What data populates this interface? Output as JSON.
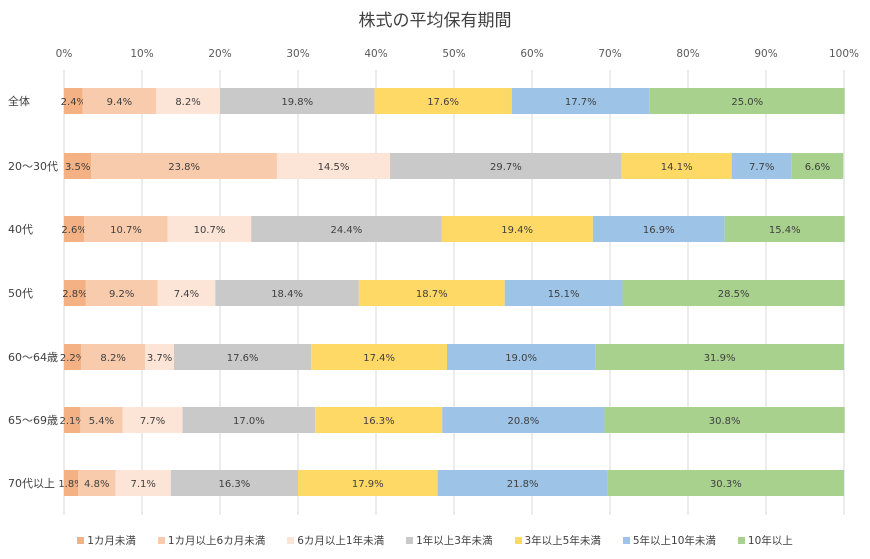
{
  "chart_data": {
    "type": "bar",
    "orientation": "horizontal",
    "stacked": "100%",
    "title": "株式の平均保有期間",
    "categories": [
      "全体",
      "20～30代",
      "40代",
      "50代",
      "60～64歳",
      "65～69歳",
      "70代以上"
    ],
    "xlim": [
      0,
      100
    ],
    "xticks": [
      "0%",
      "10%",
      "20%",
      "30%",
      "40%",
      "50%",
      "60%",
      "70%",
      "80%",
      "90%",
      "100%"
    ],
    "grid": true,
    "legend": "bottom",
    "series": [
      {
        "name": "1カ月未満",
        "color": "#F4B183",
        "values": [
          2.4,
          3.5,
          2.6,
          2.8,
          2.2,
          2.1,
          1.8
        ]
      },
      {
        "name": "1カ月以上6カ月未満",
        "color": "#F8CBAD",
        "values": [
          9.4,
          23.8,
          10.7,
          9.2,
          8.2,
          5.4,
          4.8
        ]
      },
      {
        "name": "6カ月以上1年未満",
        "color": "#FCE4D6",
        "values": [
          8.2,
          14.5,
          10.7,
          7.4,
          3.7,
          7.7,
          7.1
        ]
      },
      {
        "name": "1年以上3年未満",
        "color": "#C9C9C9",
        "values": [
          19.8,
          29.7,
          24.4,
          18.4,
          17.6,
          17.0,
          16.3
        ]
      },
      {
        "name": "3年以上5年未満",
        "color": "#FFD966",
        "values": [
          17.6,
          14.1,
          19.4,
          18.7,
          17.4,
          16.3,
          17.9
        ]
      },
      {
        "name": "5年以上10年未満",
        "color": "#9DC3E6",
        "values": [
          17.7,
          7.7,
          16.9,
          15.1,
          19.0,
          20.8,
          21.8
        ]
      },
      {
        "name": "10年以上",
        "color": "#A9D18E",
        "values": [
          25.0,
          6.6,
          15.4,
          28.5,
          31.9,
          30.8,
          30.3
        ]
      }
    ]
  }
}
